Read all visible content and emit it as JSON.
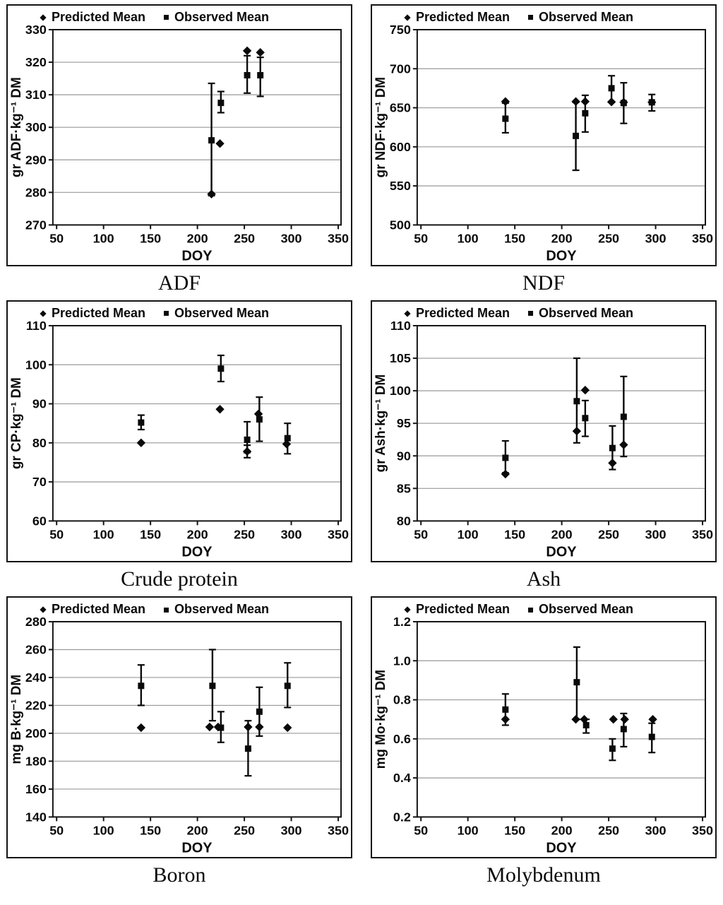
{
  "style": {
    "background": "#ffffff",
    "marker_color": "#0a0a0a",
    "grid_color": "#999999",
    "frame_color": "#141414",
    "text_color": "#0a0a0a"
  },
  "chart_data": [
    {
      "id": "adf",
      "type": "scatter",
      "caption": "ADF",
      "xlabel": "DOY",
      "ylabel": "gr ADF·kg⁻¹ DM",
      "xlim": [
        46,
        353
      ],
      "xticks": [
        50,
        100,
        150,
        200,
        250,
        300,
        350
      ],
      "ylim": [
        270,
        330
      ],
      "yticks": [
        270,
        280,
        290,
        300,
        310,
        320,
        330
      ],
      "ytick_decimals": 0,
      "grid": "horizontal",
      "legend_position": "top",
      "legend": {
        "predicted": "Predicted Mean",
        "observed": "Observed Mean"
      },
      "series": [
        {
          "name": "Predicted Mean",
          "marker": "diamond",
          "points": [
            {
              "x": 215,
              "y": 279.5
            },
            {
              "x": 224,
              "y": 295
            },
            {
              "x": 253,
              "y": 323.5
            },
            {
              "x": 267,
              "y": 323
            }
          ]
        },
        {
          "name": "Observed Mean",
          "marker": "square",
          "points": [
            {
              "x": 215,
              "y": 296,
              "lo": 279,
              "hi": 313.5
            },
            {
              "x": 225,
              "y": 307.5,
              "lo": 304.5,
              "hi": 311
            },
            {
              "x": 253,
              "y": 316,
              "lo": 310.5,
              "hi": 322
            },
            {
              "x": 267,
              "y": 316,
              "lo": 309.5,
              "hi": 321.5
            }
          ]
        }
      ]
    },
    {
      "id": "ndf",
      "type": "scatter",
      "caption": "NDF",
      "xlabel": "DOY",
      "ylabel": "gr NDF·kg⁻¹ DM",
      "xlim": [
        46,
        353
      ],
      "xticks": [
        50,
        100,
        150,
        200,
        250,
        300,
        350
      ],
      "ylim": [
        500,
        750
      ],
      "yticks": [
        500,
        550,
        600,
        650,
        700,
        750
      ],
      "ytick_decimals": 0,
      "grid": "horizontal",
      "legend_position": "top",
      "legend": {
        "predicted": "Predicted Mean",
        "observed": "Observed Mean"
      },
      "series": [
        {
          "name": "Predicted Mean",
          "marker": "diamond",
          "points": [
            {
              "x": 140,
              "y": 658
            },
            {
              "x": 215,
              "y": 658
            },
            {
              "x": 225,
              "y": 658
            },
            {
              "x": 253,
              "y": 657.5
            },
            {
              "x": 266,
              "y": 657
            },
            {
              "x": 296,
              "y": 657
            }
          ]
        },
        {
          "name": "Observed Mean",
          "marker": "square",
          "points": [
            {
              "x": 140,
              "y": 636,
              "lo": 618,
              "hi": 656
            },
            {
              "x": 215,
              "y": 614,
              "lo": 570,
              "hi": 657
            },
            {
              "x": 225,
              "y": 643,
              "lo": 619,
              "hi": 666
            },
            {
              "x": 253,
              "y": 675,
              "lo": 657,
              "hi": 691
            },
            {
              "x": 266,
              "y": 656,
              "lo": 630,
              "hi": 682
            },
            {
              "x": 296,
              "y": 657,
              "lo": 646,
              "hi": 667
            }
          ]
        }
      ]
    },
    {
      "id": "crude-protein",
      "type": "scatter",
      "caption": "Crude protein",
      "xlabel": "DOY",
      "ylabel": "gr CP·kg⁻¹ DM",
      "xlim": [
        46,
        353
      ],
      "xticks": [
        50,
        100,
        150,
        200,
        250,
        300,
        350
      ],
      "ylim": [
        60,
        110
      ],
      "yticks": [
        60,
        70,
        80,
        90,
        100,
        110
      ],
      "ytick_decimals": 0,
      "grid": "horizontal",
      "legend_position": "top",
      "legend": {
        "predicted": "Predicted Mean",
        "observed": "Observed Mean"
      },
      "series": [
        {
          "name": "Predicted Mean",
          "marker": "diamond",
          "points": [
            {
              "x": 140,
              "y": 80
            },
            {
              "x": 224,
              "y": 88.6
            },
            {
              "x": 253,
              "y": 77.8,
              "lo": 76.2,
              "hi": 79.4
            },
            {
              "x": 265,
              "y": 87.4
            },
            {
              "x": 295,
              "y": 79.7
            }
          ]
        },
        {
          "name": "Observed Mean",
          "marker": "square",
          "points": [
            {
              "x": 140,
              "y": 85.2,
              "lo": 83.4,
              "hi": 87.1
            },
            {
              "x": 225,
              "y": 99,
              "lo": 95.7,
              "hi": 102.4
            },
            {
              "x": 253,
              "y": 80.8,
              "lo": 77.5,
              "hi": 85.4
            },
            {
              "x": 266,
              "y": 86,
              "lo": 80.4,
              "hi": 91.7
            },
            {
              "x": 296,
              "y": 81.2,
              "lo": 77.2,
              "hi": 85
            }
          ]
        }
      ]
    },
    {
      "id": "ash",
      "type": "scatter",
      "caption": "Ash",
      "xlabel": "DOY",
      "ylabel": "gr Ash·kg⁻¹ DM",
      "xlim": [
        46,
        353
      ],
      "xticks": [
        50,
        100,
        150,
        200,
        250,
        300,
        350
      ],
      "ylim": [
        80,
        110
      ],
      "yticks": [
        80,
        85,
        90,
        95,
        100,
        105,
        110
      ],
      "ytick_decimals": 0,
      "grid": "horizontal",
      "legend_position": "top",
      "legend": {
        "predicted": "Predicted Mean",
        "observed": "Observed Mean"
      },
      "series": [
        {
          "name": "Predicted Mean",
          "marker": "diamond",
          "points": [
            {
              "x": 140,
              "y": 87.2
            },
            {
              "x": 216,
              "y": 93.8
            },
            {
              "x": 225,
              "y": 100.1
            },
            {
              "x": 254,
              "y": 88.9
            },
            {
              "x": 266,
              "y": 91.7
            }
          ]
        },
        {
          "name": "Observed Mean",
          "marker": "square",
          "points": [
            {
              "x": 140,
              "y": 89.7,
              "lo": 87.4,
              "hi": 92.3
            },
            {
              "x": 216,
              "y": 98.4,
              "lo": 92,
              "hi": 105
            },
            {
              "x": 225,
              "y": 95.8,
              "lo": 93,
              "hi": 98.5
            },
            {
              "x": 254,
              "y": 91.2,
              "lo": 87.9,
              "hi": 94.6
            },
            {
              "x": 266,
              "y": 96,
              "lo": 89.9,
              "hi": 102.2
            }
          ]
        }
      ]
    },
    {
      "id": "boron",
      "type": "scatter",
      "caption": "Boron",
      "xlabel": "DOY",
      "ylabel": "mg B·kg⁻¹ DM",
      "xlim": [
        46,
        353
      ],
      "xticks": [
        50,
        100,
        150,
        200,
        250,
        300,
        350
      ],
      "ylim": [
        140,
        280
      ],
      "yticks": [
        140,
        160,
        180,
        200,
        220,
        240,
        260,
        280
      ],
      "ytick_decimals": 0,
      "grid": "horizontal",
      "legend_position": "top",
      "legend": {
        "predicted": "Predicted Mean",
        "observed": "Observed Mean"
      },
      "series": [
        {
          "name": "Predicted Mean",
          "marker": "diamond",
          "points": [
            {
              "x": 140,
              "y": 204
            },
            {
              "x": 213,
              "y": 204.5
            },
            {
              "x": 222,
              "y": 204.5
            },
            {
              "x": 254,
              "y": 204.5
            },
            {
              "x": 266,
              "y": 204.5
            },
            {
              "x": 296,
              "y": 204
            }
          ]
        },
        {
          "name": "Observed Mean",
          "marker": "square",
          "points": [
            {
              "x": 140,
              "y": 234,
              "lo": 220,
              "hi": 249
            },
            {
              "x": 216,
              "y": 234,
              "lo": 209,
              "hi": 260
            },
            {
              "x": 225,
              "y": 204,
              "lo": 193.5,
              "hi": 215.5
            },
            {
              "x": 254,
              "y": 189,
              "lo": 169.5,
              "hi": 209
            },
            {
              "x": 266,
              "y": 215.5,
              "lo": 198,
              "hi": 233
            },
            {
              "x": 296,
              "y": 234,
              "lo": 218.5,
              "hi": 250.5
            }
          ]
        }
      ]
    },
    {
      "id": "molybdenum",
      "type": "scatter",
      "caption": "Molybdenum",
      "xlabel": "DOY",
      "ylabel": "mg Mo·kg⁻¹ DM",
      "xlim": [
        46,
        353
      ],
      "xticks": [
        50,
        100,
        150,
        200,
        250,
        300,
        350
      ],
      "ylim": [
        0.2,
        1.2
      ],
      "yticks": [
        0.2,
        0.4,
        0.6,
        0.8,
        1.0,
        1.2
      ],
      "ytick_decimals": 1,
      "grid": "horizontal",
      "legend_position": "top",
      "legend": {
        "predicted": "Predicted Mean",
        "observed": "Observed Mean"
      },
      "series": [
        {
          "name": "Predicted Mean",
          "marker": "diamond",
          "points": [
            {
              "x": 140,
              "y": 0.7
            },
            {
              "x": 215,
              "y": 0.7
            },
            {
              "x": 224,
              "y": 0.7
            },
            {
              "x": 255,
              "y": 0.7
            },
            {
              "x": 267,
              "y": 0.7
            },
            {
              "x": 297,
              "y": 0.7
            }
          ]
        },
        {
          "name": "Observed Mean",
          "marker": "square",
          "points": [
            {
              "x": 140,
              "y": 0.75,
              "lo": 0.67,
              "hi": 0.83
            },
            {
              "x": 216,
              "y": 0.89,
              "lo": 0.7,
              "hi": 1.07
            },
            {
              "x": 226,
              "y": 0.67,
              "lo": 0.63,
              "hi": 0.7
            },
            {
              "x": 254,
              "y": 0.55,
              "lo": 0.49,
              "hi": 0.6
            },
            {
              "x": 266,
              "y": 0.65,
              "lo": 0.56,
              "hi": 0.73
            },
            {
              "x": 296,
              "y": 0.61,
              "lo": 0.53,
              "hi": 0.68
            }
          ]
        }
      ]
    }
  ]
}
